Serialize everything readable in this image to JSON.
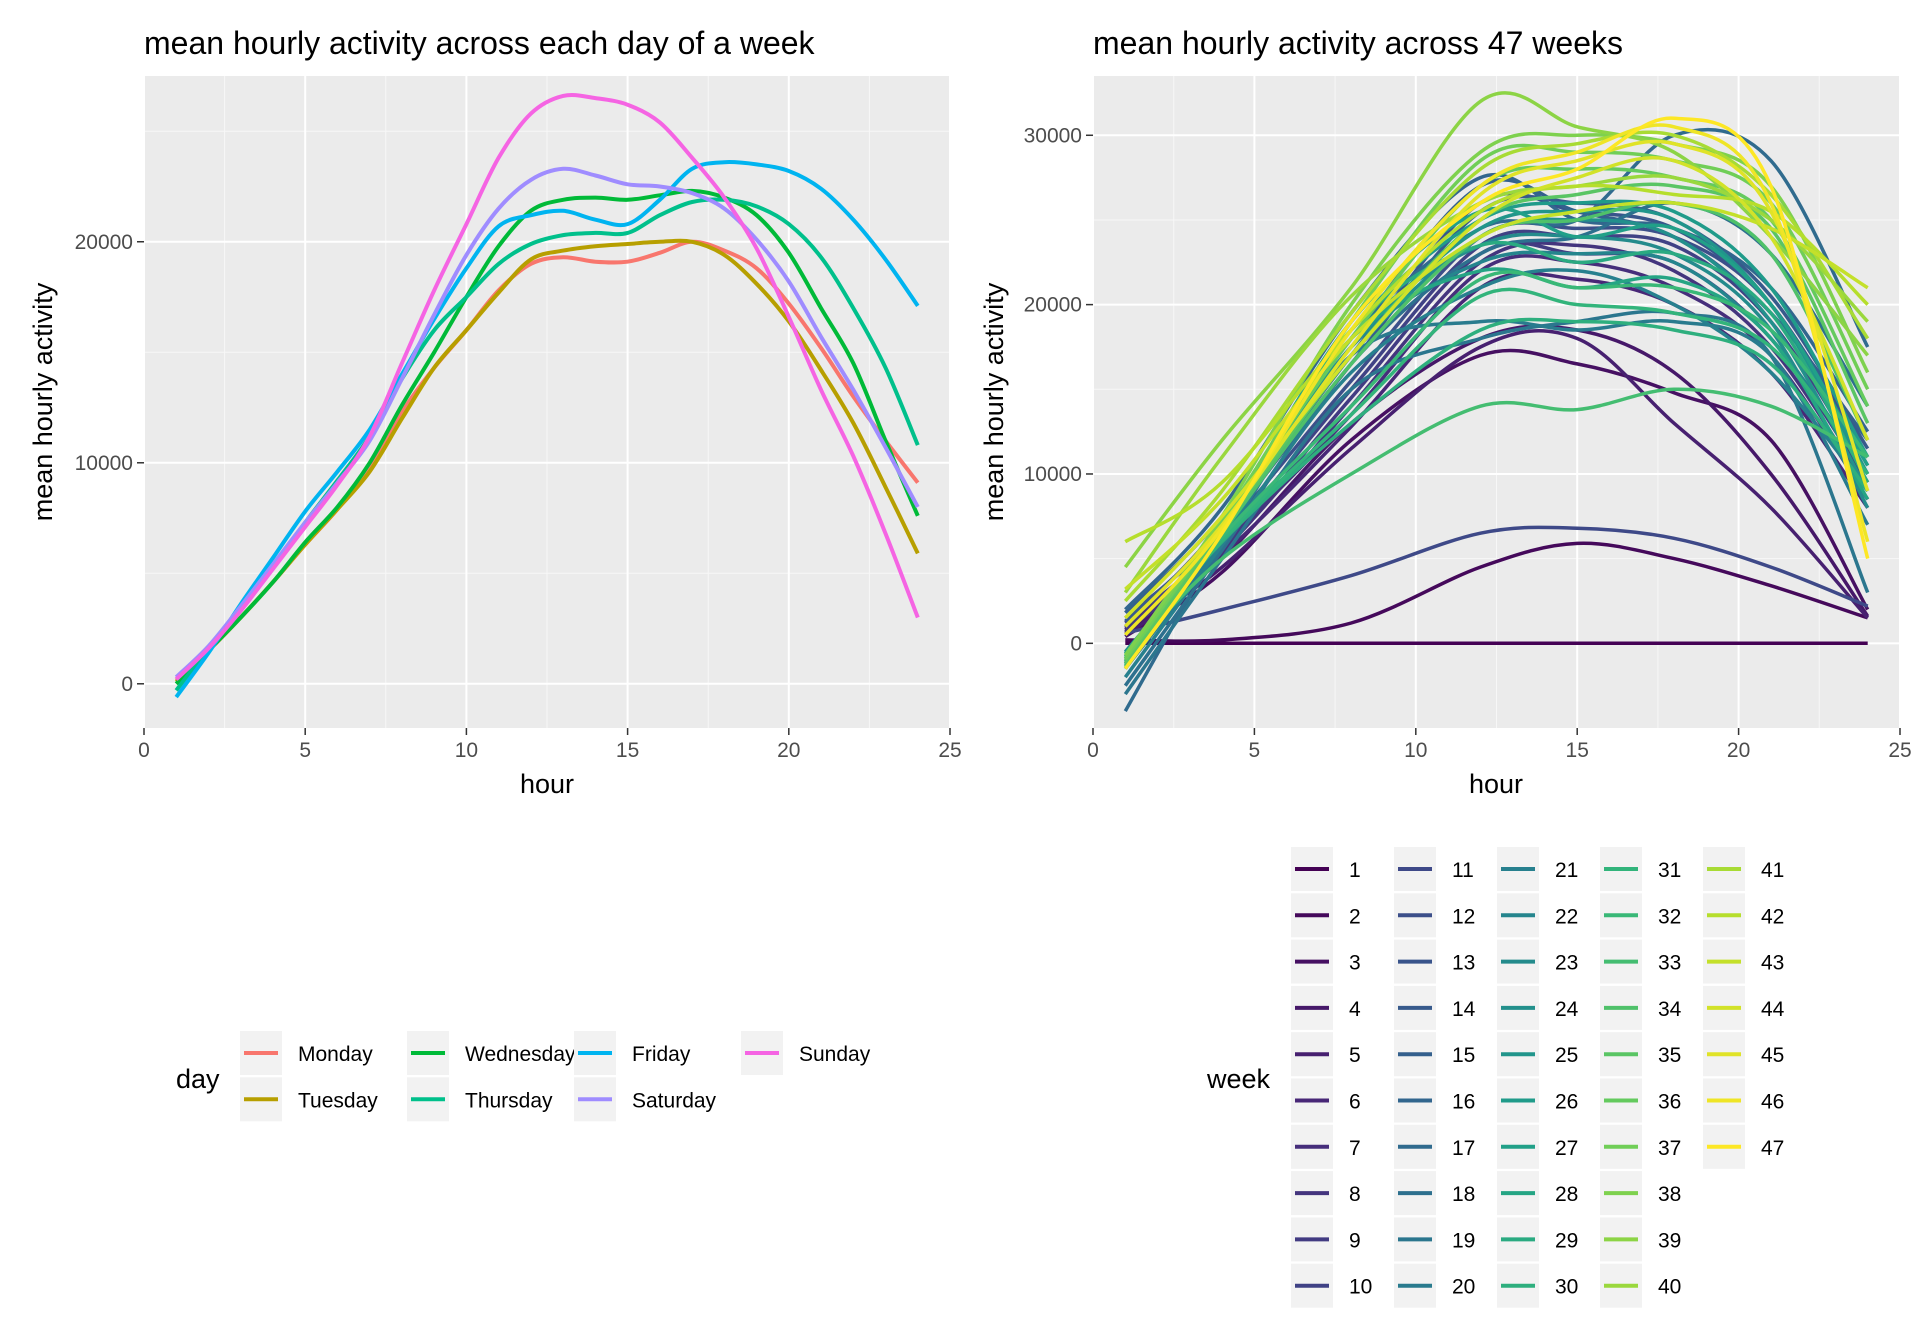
{
  "chart_data": [
    {
      "type": "line",
      "title": "mean hourly activity across each day of a week",
      "xlabel": "hour",
      "ylabel": "mean hourly activity",
      "xlim": [
        0,
        25
      ],
      "ylim": [
        -2000,
        27500
      ],
      "x_ticks": [
        0,
        5,
        10,
        15,
        20,
        25
      ],
      "y_ticks": [
        0,
        10000,
        20000
      ],
      "grid": true,
      "legend": {
        "title": "day",
        "placement": "bottom",
        "columns": 4
      },
      "x": [
        1,
        2,
        3,
        4,
        5,
        6,
        7,
        8,
        9,
        10,
        11,
        12,
        13,
        14,
        15,
        16,
        17,
        18,
        19,
        20,
        21,
        22,
        23,
        24
      ],
      "series": [
        {
          "name": "Monday",
          "color": "#F8766D",
          "values": [
            200,
            1500,
            3000,
            4600,
            6300,
            7900,
            9800,
            12300,
            14300,
            16000,
            17800,
            19000,
            19300,
            19100,
            19100,
            19500,
            20000,
            19600,
            18800,
            17200,
            15200,
            13000,
            11000,
            9100
          ]
        },
        {
          "name": "Tuesday",
          "color": "#B79F00",
          "values": [
            100,
            1500,
            3000,
            4600,
            6300,
            7900,
            9600,
            12000,
            14300,
            16000,
            17700,
            19200,
            19600,
            19800,
            19900,
            20000,
            20000,
            19400,
            18100,
            16400,
            14200,
            11800,
            8900,
            5900
          ]
        },
        {
          "name": "Wednesday",
          "color": "#00BA38",
          "values": [
            0,
            1500,
            3000,
            4600,
            6400,
            8000,
            10000,
            12600,
            15000,
            17500,
            19800,
            21400,
            21900,
            22000,
            21900,
            22100,
            22300,
            22000,
            21200,
            19500,
            17000,
            14500,
            11000,
            7600
          ]
        },
        {
          "name": "Thursday",
          "color": "#00C08B",
          "values": [
            -300,
            1600,
            3400,
            5300,
            7300,
            9200,
            11200,
            13800,
            16000,
            17500,
            19000,
            19900,
            20300,
            20400,
            20400,
            21200,
            21800,
            21900,
            21600,
            20800,
            19300,
            17000,
            14300,
            10800
          ]
        },
        {
          "name": "Friday",
          "color": "#00B4F0",
          "values": [
            -600,
            1400,
            3600,
            5700,
            7800,
            9600,
            11500,
            14000,
            16500,
            18800,
            20700,
            21200,
            21400,
            21000,
            20800,
            21900,
            23300,
            23600,
            23500,
            23200,
            22400,
            21000,
            19200,
            17100
          ]
        },
        {
          "name": "Saturday",
          "color": "#9F8CFF",
          "values": [
            300,
            1700,
            3500,
            5400,
            7300,
            9100,
            11000,
            13800,
            16700,
            19400,
            21500,
            22800,
            23300,
            23000,
            22600,
            22500,
            22200,
            21500,
            20100,
            18200,
            15700,
            13300,
            10700,
            8000
          ]
        },
        {
          "name": "Sunday",
          "color": "#F564E3",
          "values": [
            200,
            1600,
            3300,
            5200,
            7100,
            9000,
            11200,
            14500,
            17800,
            20800,
            23800,
            25800,
            26600,
            26500,
            26200,
            25400,
            23800,
            22000,
            19700,
            16600,
            13300,
            10300,
            6800,
            3000
          ]
        }
      ]
    },
    {
      "type": "line",
      "title": "mean hourly activity across 47 weeks",
      "xlabel": "hour",
      "ylabel": "mean hourly activity",
      "xlim": [
        0,
        25
      ],
      "ylim": [
        -5000,
        33500
      ],
      "x_ticks": [
        0,
        5,
        10,
        15,
        20,
        25
      ],
      "y_ticks": [
        0,
        10000,
        20000,
        30000
      ],
      "grid": true,
      "legend": {
        "title": "week",
        "placement": "bottom",
        "columns": 5
      },
      "x_sampled": [
        1,
        4,
        8,
        12,
        15,
        18,
        21,
        24
      ],
      "color_scale": "viridis",
      "series": [
        {
          "name": "1",
          "values": [
            0,
            0,
            0,
            0,
            0,
            0,
            0,
            0
          ]
        },
        {
          "name": "2",
          "values": [
            200,
            200,
            1200,
            4500,
            5900,
            5000,
            3400,
            1500
          ]
        },
        {
          "name": "3",
          "values": [
            400,
            4200,
            12000,
            17000,
            16500,
            14800,
            12000,
            2000
          ]
        },
        {
          "name": "4",
          "values": [
            600,
            5000,
            13000,
            18000,
            18500,
            16000,
            10000,
            1600
          ]
        },
        {
          "name": "5",
          "values": [
            500,
            4500,
            11500,
            17500,
            18000,
            13000,
            8000,
            1500
          ]
        },
        {
          "name": "6",
          "values": [
            800,
            5200,
            12800,
            21000,
            21500,
            20000,
            16000,
            8000
          ]
        },
        {
          "name": "7",
          "values": [
            1000,
            5800,
            13500,
            22000,
            22500,
            21000,
            17000,
            8500
          ]
        },
        {
          "name": "8",
          "values": [
            700,
            5400,
            14000,
            22500,
            23500,
            22000,
            17500,
            9000
          ]
        },
        {
          "name": "9",
          "values": [
            900,
            5600,
            14500,
            23000,
            23000,
            22500,
            18000,
            9500
          ]
        },
        {
          "name": "10",
          "values": [
            1200,
            6000,
            15000,
            23500,
            24000,
            23500,
            19000,
            10000
          ]
        },
        {
          "name": "11",
          "values": [
            600,
            2000,
            4000,
            6500,
            6800,
            6200,
            4500,
            2200
          ]
        },
        {
          "name": "12",
          "values": [
            1500,
            6500,
            15500,
            24000,
            24500,
            24000,
            20000,
            10500
          ]
        },
        {
          "name": "13",
          "values": [
            1000,
            7000,
            17000,
            26000,
            25500,
            24500,
            20000,
            11000
          ]
        },
        {
          "name": "14",
          "values": [
            1300,
            6800,
            16500,
            25500,
            26000,
            25000,
            20500,
            11500
          ]
        },
        {
          "name": "15",
          "values": [
            1800,
            7500,
            18000,
            27000,
            25500,
            24000,
            19500,
            12000
          ]
        },
        {
          "name": "16",
          "values": [
            2000,
            8000,
            19500,
            27500,
            25000,
            24500,
            21000,
            12500
          ]
        },
        {
          "name": "17",
          "values": [
            -4000,
            6000,
            18000,
            24500,
            25000,
            30000,
            28500,
            17500
          ]
        },
        {
          "name": "18",
          "values": [
            -2500,
            5500,
            16500,
            23000,
            24000,
            26000,
            23000,
            14000
          ]
        },
        {
          "name": "19",
          "values": [
            -3000,
            5000,
            15000,
            18000,
            19000,
            19500,
            17000,
            3000
          ]
        },
        {
          "name": "20",
          "values": [
            -1500,
            6000,
            17000,
            19000,
            18500,
            19000,
            17000,
            7000
          ]
        },
        {
          "name": "21",
          "values": [
            -2000,
            5800,
            16000,
            21000,
            22000,
            20000,
            16000,
            9000
          ]
        },
        {
          "name": "22",
          "values": [
            -1000,
            6200,
            17500,
            22500,
            23000,
            22500,
            18000,
            10000
          ]
        },
        {
          "name": "23",
          "values": [
            -500,
            6500,
            18000,
            23500,
            24000,
            23000,
            18500,
            8000
          ]
        },
        {
          "name": "24",
          "values": [
            -1200,
            6400,
            17000,
            24000,
            25000,
            24000,
            19000,
            9000
          ]
        },
        {
          "name": "25",
          "values": [
            -800,
            6600,
            17500,
            24500,
            25500,
            25000,
            20000,
            10000
          ]
        },
        {
          "name": "26",
          "values": [
            -1500,
            6800,
            18500,
            25000,
            26000,
            25500,
            21000,
            11000
          ]
        },
        {
          "name": "27",
          "values": [
            -600,
            7000,
            19000,
            25500,
            24000,
            24500,
            20000,
            10500
          ]
        },
        {
          "name": "28",
          "values": [
            -900,
            7200,
            18000,
            22000,
            21000,
            21500,
            18000,
            8500
          ]
        },
        {
          "name": "29",
          "values": [
            -1100,
            6900,
            18500,
            23500,
            22500,
            23000,
            19500,
            9500
          ]
        },
        {
          "name": "30",
          "values": [
            -700,
            6000,
            13000,
            18500,
            19000,
            18500,
            16500,
            9000
          ]
        },
        {
          "name": "31",
          "values": [
            -1300,
            6100,
            13500,
            20500,
            20000,
            19500,
            17500,
            10000
          ]
        },
        {
          "name": "32",
          "values": [
            -1000,
            6300,
            14000,
            21500,
            21000,
            21000,
            18500,
            11000
          ]
        },
        {
          "name": "33",
          "values": [
            -800,
            5000,
            10000,
            14000,
            13800,
            15000,
            14000,
            11000
          ]
        },
        {
          "name": "34",
          "values": [
            -1400,
            6500,
            16500,
            24000,
            25000,
            26000,
            23000,
            12000
          ]
        },
        {
          "name": "35",
          "values": [
            -1200,
            6700,
            17000,
            25000,
            26500,
            27000,
            24500,
            13000
          ]
        },
        {
          "name": "36",
          "values": [
            -1000,
            7000,
            18000,
            27000,
            28000,
            27500,
            25000,
            14000
          ]
        },
        {
          "name": "37",
          "values": [
            -900,
            7200,
            19000,
            28500,
            29000,
            28500,
            26000,
            15000
          ]
        },
        {
          "name": "38",
          "values": [
            -700,
            7500,
            20000,
            29000,
            30000,
            29500,
            27000,
            16000
          ]
        },
        {
          "name": "39",
          "values": [
            4500,
            12000,
            21000,
            32000,
            30500,
            29000,
            24000,
            17000
          ]
        },
        {
          "name": "40",
          "values": [
            3000,
            11000,
            20500,
            26000,
            27000,
            27500,
            25000,
            19000
          ]
        },
        {
          "name": "41",
          "values": [
            2500,
            9000,
            19500,
            28000,
            29500,
            30000,
            26500,
            18000
          ]
        },
        {
          "name": "42",
          "values": [
            6000,
            9500,
            18500,
            25500,
            27000,
            26500,
            25500,
            20000
          ]
        },
        {
          "name": "43",
          "values": [
            3200,
            8500,
            18000,
            24000,
            25500,
            26000,
            24500,
            21000
          ]
        },
        {
          "name": "44",
          "values": [
            1500,
            7500,
            17000,
            25000,
            27500,
            28500,
            24000,
            12000
          ]
        },
        {
          "name": "45",
          "values": [
            1000,
            7000,
            17500,
            26500,
            28500,
            29500,
            25500,
            9000
          ]
        },
        {
          "name": "46",
          "values": [
            500,
            6800,
            18500,
            27000,
            29000,
            30500,
            26000,
            6000
          ]
        },
        {
          "name": "47",
          "values": [
            -1500,
            6500,
            19000,
            26000,
            28000,
            31000,
            27000,
            5000
          ]
        }
      ]
    }
  ]
}
